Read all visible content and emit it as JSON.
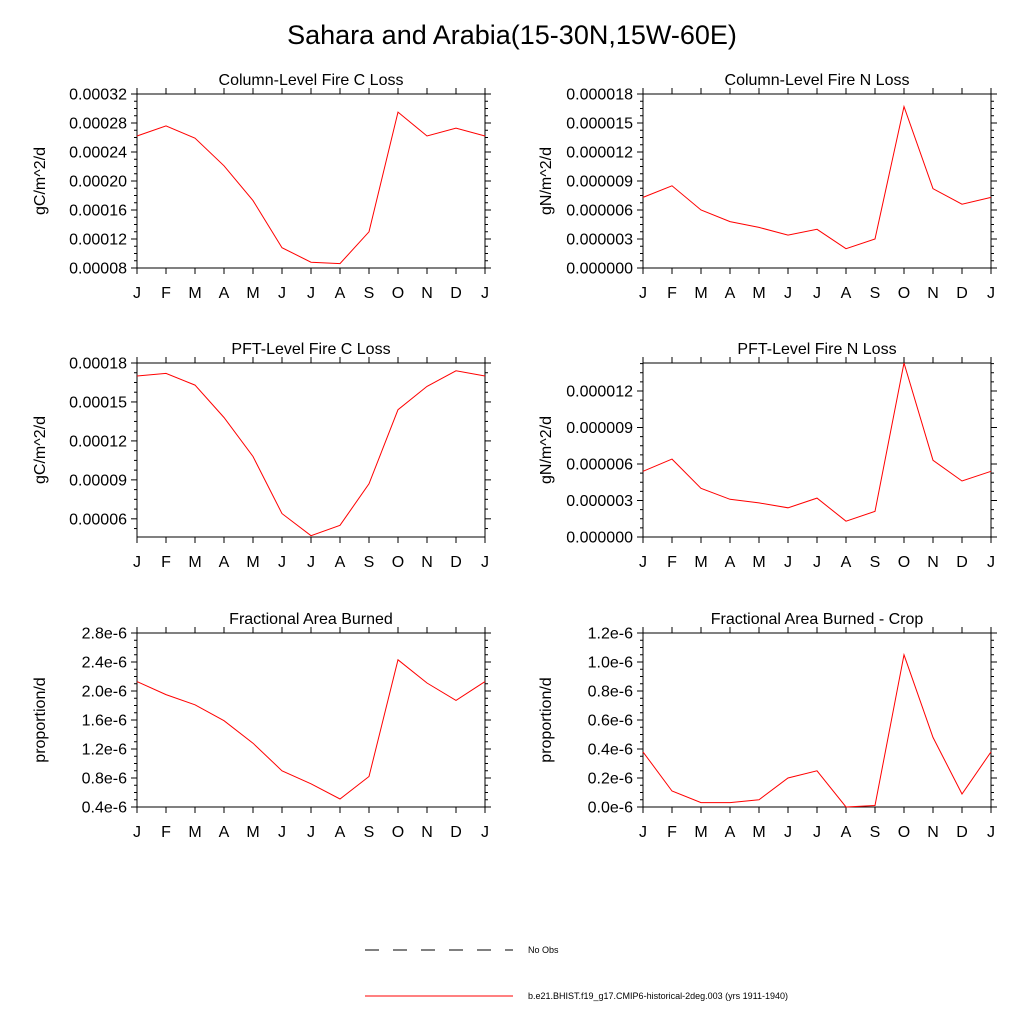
{
  "title": "Sahara and Arabia(15-30N,15W-60E)",
  "colors": {
    "series": "#ff0000",
    "obs": "#000000",
    "axis": "#000000"
  },
  "legend": {
    "obs_label": "No Obs",
    "model_label": "b.e21.BHIST.f19_g17.CMIP6-historical-2deg.003 (yrs 1911-1940)"
  },
  "chart_data": [
    {
      "type": "line",
      "title": "Column-Level Fire C Loss",
      "ylabel": "gC/m^2/d",
      "categories": [
        "J",
        "F",
        "M",
        "A",
        "M",
        "J",
        "J",
        "A",
        "S",
        "O",
        "N",
        "D",
        "J"
      ],
      "yticks": [
        "0.00008",
        "0.00012",
        "0.00016",
        "0.00020",
        "0.00024",
        "0.00028",
        "0.00032"
      ],
      "ylim": [
        8e-05,
        0.00032
      ],
      "grid": false,
      "series": [
        {
          "values": [
            0.000262,
            0.000276,
            0.000259,
            0.000221,
            0.000173,
            0.000108,
            8.8e-05,
            8.6e-05,
            0.00013,
            0.000295,
            0.000262,
            0.000273,
            0.000262
          ]
        }
      ]
    },
    {
      "type": "line",
      "title": "Column-Level Fire N Loss",
      "ylabel": "gN/m^2/d",
      "categories": [
        "J",
        "F",
        "M",
        "A",
        "M",
        "J",
        "J",
        "A",
        "S",
        "O",
        "N",
        "D",
        "J"
      ],
      "yticks": [
        "0.000000",
        "0.000003",
        "0.000006",
        "0.000009",
        "0.000012",
        "0.000015",
        "0.000018"
      ],
      "ylim": [
        0,
        1.8e-05
      ],
      "grid": false,
      "series": [
        {
          "values": [
            7.3e-06,
            8.5e-06,
            6e-06,
            4.8e-06,
            4.2e-06,
            3.4e-06,
            4e-06,
            2e-06,
            3e-06,
            1.67e-05,
            8.2e-06,
            6.6e-06,
            7.3e-06
          ]
        }
      ]
    },
    {
      "type": "line",
      "title": "PFT-Level Fire C Loss",
      "ylabel": "gC/m^2/d",
      "categories": [
        "J",
        "F",
        "M",
        "A",
        "M",
        "J",
        "J",
        "A",
        "S",
        "O",
        "N",
        "D",
        "J"
      ],
      "yticks": [
        "0.00006",
        "0.00009",
        "0.00012",
        "0.00015",
        "0.00018"
      ],
      "ylim": [
        4.6e-05,
        0.00018
      ],
      "grid": false,
      "series": [
        {
          "values": [
            0.00017,
            0.000172,
            0.000163,
            0.000138,
            0.000108,
            6.4e-05,
            4.7e-05,
            5.5e-05,
            8.7e-05,
            0.000144,
            0.000162,
            0.000174,
            0.00017
          ]
        }
      ]
    },
    {
      "type": "line",
      "title": "PFT-Level Fire N Loss",
      "ylabel": "gN/m^2/d",
      "categories": [
        "J",
        "F",
        "M",
        "A",
        "M",
        "J",
        "J",
        "A",
        "S",
        "O",
        "N",
        "D",
        "J"
      ],
      "yticks": [
        "0.000000",
        "0.000003",
        "0.000006",
        "0.000009",
        "0.000012"
      ],
      "ylim": [
        0,
        1.43e-05
      ],
      "grid": false,
      "series": [
        {
          "values": [
            5.4e-06,
            6.4e-06,
            4e-06,
            3.1e-06,
            2.8e-06,
            2.4e-06,
            3.2e-06,
            1.3e-06,
            2.1e-06,
            1.43e-05,
            6.3e-06,
            4.6e-06,
            5.4e-06
          ]
        }
      ]
    },
    {
      "type": "line",
      "title": "Fractional Area Burned",
      "ylabel": "proportion/d",
      "categories": [
        "J",
        "F",
        "M",
        "A",
        "M",
        "J",
        "J",
        "A",
        "S",
        "O",
        "N",
        "D",
        "J"
      ],
      "yticks": [
        "0.4e-6",
        "0.8e-6",
        "1.2e-6",
        "1.6e-6",
        "2.0e-6",
        "2.4e-6",
        "2.8e-6"
      ],
      "ylim": [
        4e-07,
        2.8e-06
      ],
      "grid": false,
      "series": [
        {
          "values": [
            2.13e-06,
            1.95e-06,
            1.81e-06,
            1.59e-06,
            1.28e-06,
            9e-07,
            7.2e-07,
            5.1e-07,
            8.2e-07,
            2.43e-06,
            2.11e-06,
            1.87e-06,
            2.13e-06
          ]
        }
      ]
    },
    {
      "type": "line",
      "title": "Fractional Area Burned - Crop",
      "ylabel": "proportion/d",
      "categories": [
        "J",
        "F",
        "M",
        "A",
        "M",
        "J",
        "J",
        "A",
        "S",
        "O",
        "N",
        "D",
        "J"
      ],
      "yticks": [
        "0.0e-6",
        "0.2e-6",
        "0.4e-6",
        "0.6e-6",
        "0.8e-6",
        "1.0e-6",
        "1.2e-6"
      ],
      "ylim": [
        0,
        1.2e-06
      ],
      "grid": false,
      "series": [
        {
          "values": [
            3.8e-07,
            1.1e-07,
            3e-08,
            3e-08,
            5e-08,
            2e-07,
            2.5e-07,
            0.0,
            1e-08,
            1.05e-06,
            4.8e-07,
            9e-08,
            3.8e-07
          ]
        }
      ]
    }
  ]
}
